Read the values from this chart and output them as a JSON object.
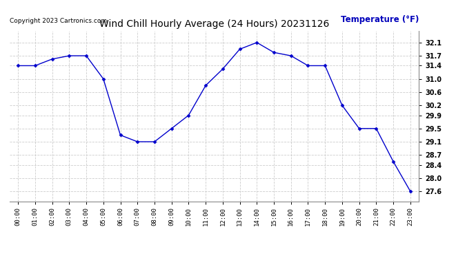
{
  "title": "Wind Chill Hourly Average (24 Hours) 20231126",
  "copyright": "Copyright 2023 Cartronics.com",
  "ylabel": "Temperature (°F)",
  "hours": [
    "00:00",
    "01:00",
    "02:00",
    "03:00",
    "04:00",
    "05:00",
    "06:00",
    "07:00",
    "08:00",
    "09:00",
    "10:00",
    "11:00",
    "12:00",
    "13:00",
    "14:00",
    "15:00",
    "16:00",
    "17:00",
    "18:00",
    "19:00",
    "20:00",
    "21:00",
    "22:00",
    "23:00"
  ],
  "values": [
    31.4,
    31.4,
    31.6,
    31.7,
    31.7,
    31.0,
    29.3,
    29.1,
    29.1,
    29.5,
    29.9,
    30.8,
    31.3,
    31.9,
    32.1,
    31.8,
    31.7,
    31.4,
    31.4,
    30.2,
    29.5,
    29.5,
    28.5,
    27.6
  ],
  "line_color": "#0000cc",
  "marker_color": "#0000cc",
  "bg_color": "#ffffff",
  "grid_color": "#cccccc",
  "ylabel_color": "#0000bb",
  "title_color": "#000000",
  "copyright_color": "#000000",
  "ylim_min": 27.3,
  "ylim_max": 32.45,
  "yticks": [
    27.6,
    28.0,
    28.4,
    28.7,
    29.1,
    29.5,
    29.9,
    30.2,
    30.6,
    31.0,
    31.4,
    31.7,
    32.1
  ]
}
